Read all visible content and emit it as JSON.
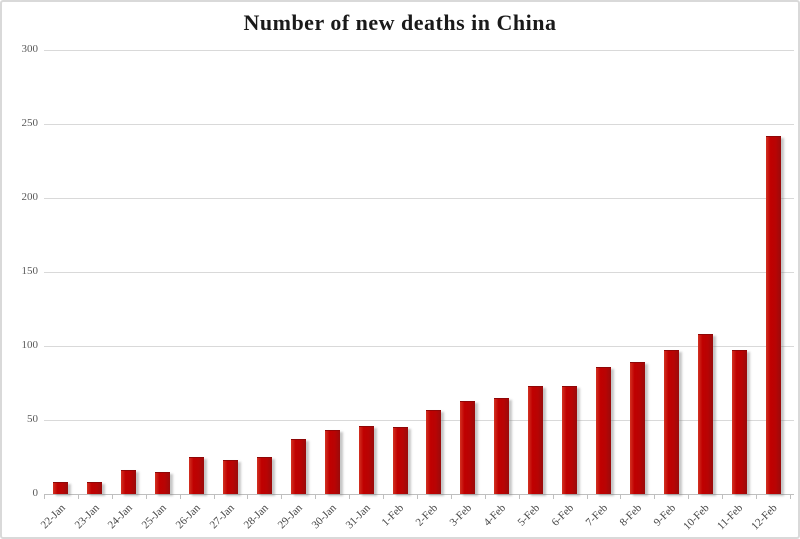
{
  "title": "Number of new deaths in China",
  "colors": {
    "bar": "#c00000",
    "gridline": "#d9d9d9",
    "axis_line": "#bfbfbf",
    "tick_label": "#595959",
    "title_text": "#1a1a1a",
    "frame_border": "#d9d9d9",
    "background": "#ffffff"
  },
  "chart_data": {
    "type": "bar",
    "title": "Number of new deaths in China",
    "categories": [
      "22-Jan",
      "23-Jan",
      "24-Jan",
      "25-Jan",
      "26-Jan",
      "27-Jan",
      "28-Jan",
      "29-Jan",
      "30-Jan",
      "31-Jan",
      "1-Feb",
      "2-Feb",
      "3-Feb",
      "4-Feb",
      "5-Feb",
      "6-Feb",
      "7-Feb",
      "8-Feb",
      "9-Feb",
      "10-Feb",
      "11-Feb",
      "12-Feb"
    ],
    "values": [
      8,
      8,
      16,
      15,
      25,
      23,
      25,
      37,
      43,
      46,
      45,
      57,
      63,
      65,
      73,
      73,
      86,
      89,
      97,
      108,
      97,
      242
    ],
    "xlabel": "",
    "ylabel": "",
    "ylim": [
      0,
      300
    ],
    "yticks": [
      0,
      50,
      100,
      150,
      200,
      250,
      300
    ],
    "grid": "horizontal",
    "legend": "none"
  }
}
